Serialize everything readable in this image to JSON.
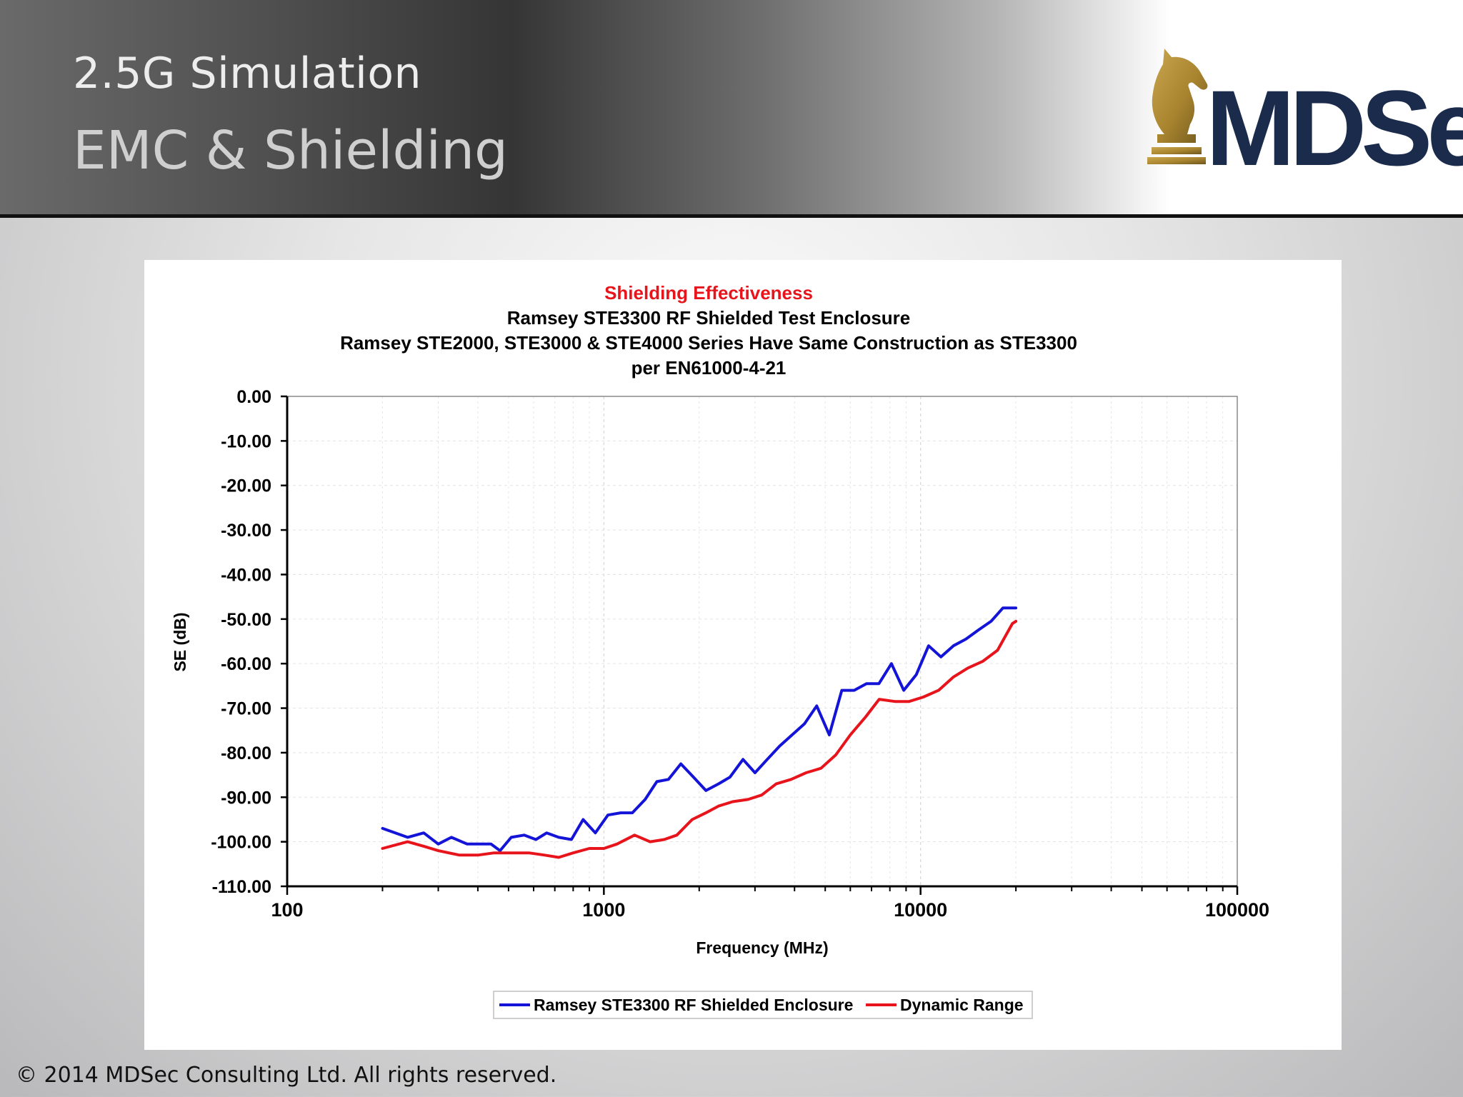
{
  "slide": {
    "subtitle": "2.5G Simulation",
    "title": "EMC & Shielding",
    "logo_text": "MDSec",
    "footer": "© 2014 MDSec Consulting Ltd.  All rights reserved.",
    "accent_gold": "#b08d3a",
    "brand_navy": "#1b2b4b"
  },
  "chart_data": {
    "type": "line",
    "title": "Shielding Effectiveness",
    "title_lines": [
      "Ramsey STE3300 RF Shielded Test Enclosure",
      "Ramsey STE2000, STE3000 & STE4000 Series Have Same Construction as STE3300",
      "per EN61000-4-21"
    ],
    "title_color": "#e8141b",
    "xlabel": "Frequency (MHz)",
    "ylabel": "SE (dB)",
    "xscale": "log",
    "xlim": [
      100,
      100000
    ],
    "ylim": [
      -110,
      0
    ],
    "x_ticks": [
      "100",
      "1000",
      "10000",
      "100000"
    ],
    "y_ticks": [
      "0.00",
      "-10.00",
      "-20.00",
      "-30.00",
      "-40.00",
      "-50.00",
      "-60.00",
      "-70.00",
      "-80.00",
      "-90.00",
      "-100.00",
      "-110.00"
    ],
    "grid": true,
    "legend_position": "bottom",
    "series": [
      {
        "name": "Ramsey STE3300 RF Shielded Enclosure",
        "color": "#1414d8",
        "x": [
          200,
          240,
          270,
          300,
          330,
          370,
          410,
          440,
          470,
          510,
          560,
          610,
          660,
          720,
          790,
          860,
          940,
          1030,
          1130,
          1230,
          1350,
          1470,
          1600,
          1750,
          1920,
          2100,
          2300,
          2500,
          2750,
          3000,
          3280,
          3590,
          3930,
          4300,
          4700,
          5150,
          5640,
          6170,
          6750,
          7390,
          8090,
          8850,
          9690,
          10600,
          11600,
          12700,
          13900,
          15200,
          16700,
          18200,
          19500,
          20000
        ],
        "y": [
          -97,
          -99,
          -98,
          -100.5,
          -99,
          -100.5,
          -100.5,
          -100.5,
          -102,
          -99,
          -98.5,
          -99.5,
          -98,
          -99,
          -99.5,
          -95,
          -98,
          -94,
          -93.5,
          -93.5,
          -90.5,
          -86.5,
          -86,
          -82.5,
          -85.5,
          -88.5,
          -87,
          -85.5,
          -81.5,
          -84.5,
          -81.5,
          -78.5,
          -76,
          -73.5,
          -69.5,
          -76,
          -66,
          -66,
          -64.5,
          -64.5,
          -60,
          -66,
          -62.5,
          -56,
          -58.5,
          -56,
          -54.5,
          -52.5,
          -50.5,
          -47.5,
          -47.5,
          -47.5
        ]
      },
      {
        "name": "Dynamic Range",
        "color": "#e8141b",
        "x": [
          200,
          240,
          270,
          300,
          350,
          400,
          450,
          510,
          580,
          650,
          720,
          800,
          900,
          1000,
          1100,
          1250,
          1400,
          1550,
          1700,
          1900,
          2100,
          2300,
          2550,
          2850,
          3150,
          3500,
          3900,
          4350,
          4850,
          5400,
          6000,
          6700,
          7400,
          8300,
          9200,
          10200,
          11400,
          12700,
          14100,
          15700,
          17500,
          19500,
          20000
        ],
        "y": [
          -101.5,
          -100,
          -101,
          -102,
          -103,
          -103,
          -102.5,
          -102.5,
          -102.5,
          -103,
          -103.5,
          -102.5,
          -101.5,
          -101.5,
          -100.5,
          -98.5,
          -100,
          -99.5,
          -98.5,
          -95,
          -93.5,
          -92,
          -91,
          -90.5,
          -89.5,
          -87,
          -86,
          -84.5,
          -83.5,
          -80.5,
          -76,
          -72,
          -68,
          -68.5,
          -68.5,
          -67.5,
          -66,
          -63,
          -61,
          -59.5,
          -57,
          -51,
          -50.5
        ]
      }
    ]
  }
}
